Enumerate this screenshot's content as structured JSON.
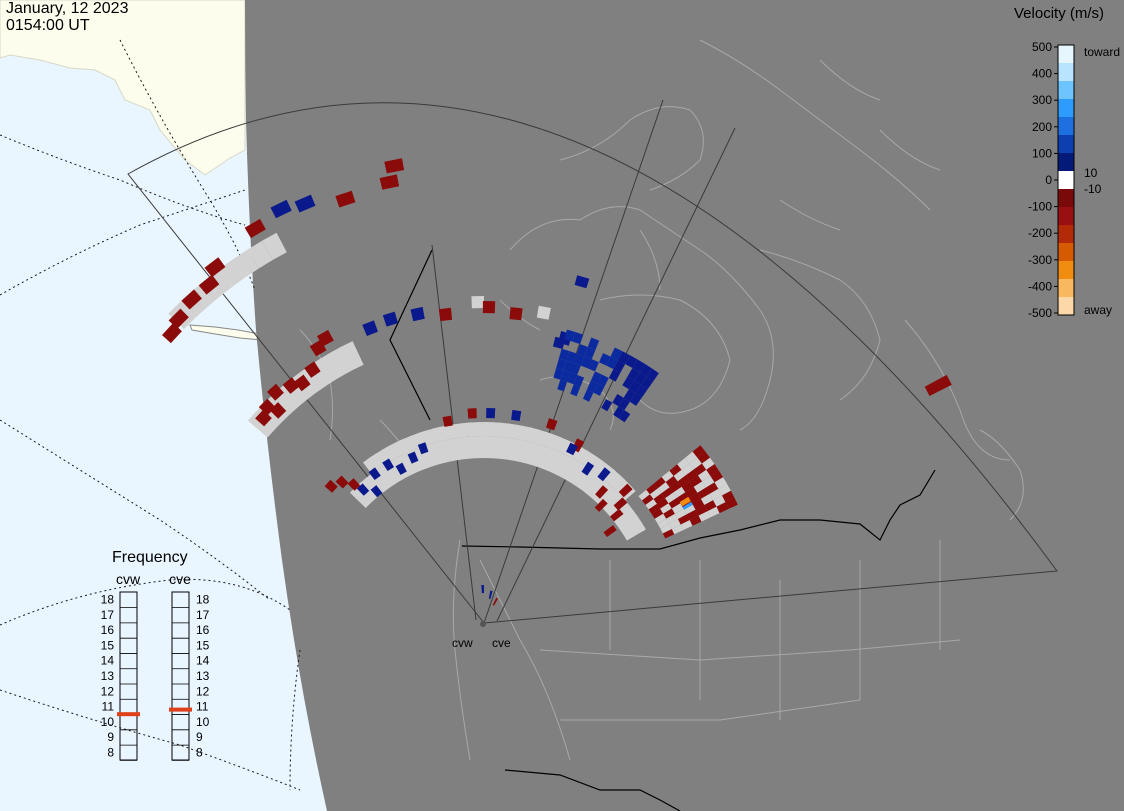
{
  "header": {
    "date": "January, 12 2023",
    "time": "0154:00 UT"
  },
  "legend": {
    "title": "Velocity (m/s)",
    "labels": [
      "500",
      "400",
      "300",
      "200",
      "100",
      "0",
      "-100",
      "-200",
      "-300",
      "-400",
      "-500"
    ],
    "toward_label": "toward",
    "away_label": "away",
    "threshold_pos": "10",
    "threshold_neg": "-10",
    "colors": [
      "#e6f6ff",
      "#b8e4ff",
      "#6ec4ff",
      "#2e9cff",
      "#1e6fe0",
      "#0d3fb0",
      "#041a78",
      "#ffffff",
      "#7a0a0a",
      "#9a1010",
      "#b32a08",
      "#d65a00",
      "#f08c10",
      "#f8b860",
      "#fcd8a8"
    ]
  },
  "frequency": {
    "title": "Frequency",
    "radars": [
      "cvw",
      "cve"
    ],
    "ticks": [
      "18",
      "17",
      "16",
      "15",
      "14",
      "13",
      "12",
      "11",
      "10",
      "9",
      "8"
    ],
    "cvw_value_mhz": 10.5,
    "cve_value_mhz": 10.8,
    "marker_color": "#e0401a"
  },
  "radars": {
    "cvw_label": "cvw",
    "cve_label": "cve"
  },
  "map_colors": {
    "night": "#808080",
    "day_ocean": "#eaf6ff",
    "day_land": "#fdfdee",
    "coast": "#a8a8a8",
    "fov": "#3a3a3a",
    "ground_scatter": "#d2d2d2"
  }
}
